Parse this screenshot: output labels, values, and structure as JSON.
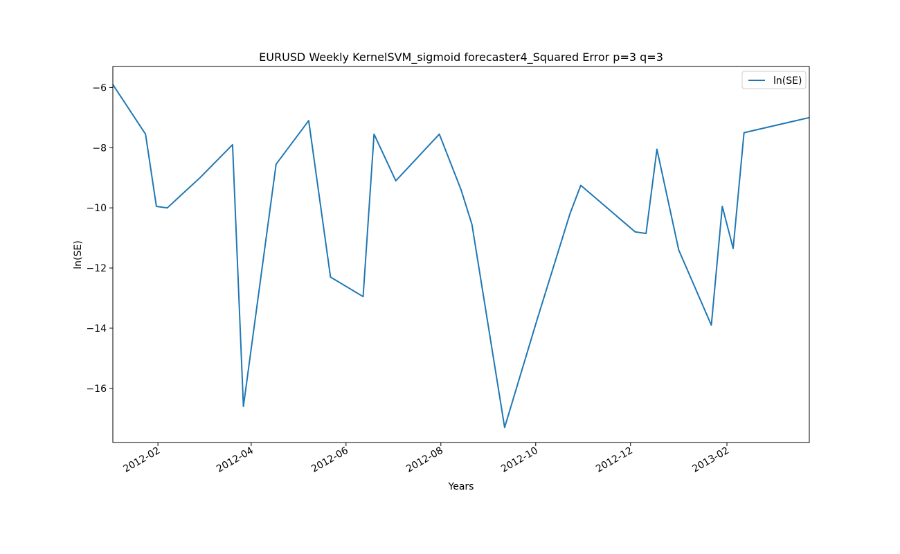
{
  "chart_data": {
    "type": "line",
    "title": "EURUSD Weekly KernelSVM_sigmoid forecaster4_Squared Error p=3 q=3",
    "xlabel": "Years",
    "ylabel": "ln(SE)",
    "x_type": "date",
    "xlim": [
      "2012-01-03",
      "2013-03-26"
    ],
    "ylim": [
      -17.8,
      -5.3
    ],
    "grid": false,
    "legend": "top-right",
    "x_ticks": [
      {
        "label": "2012-02",
        "date": "2012-02-01"
      },
      {
        "label": "2012-04",
        "date": "2012-04-01"
      },
      {
        "label": "2012-06",
        "date": "2012-06-01"
      },
      {
        "label": "2012-08",
        "date": "2012-08-01"
      },
      {
        "label": "2012-10",
        "date": "2012-10-01"
      },
      {
        "label": "2012-12",
        "date": "2012-12-01"
      },
      {
        "label": "2013-02",
        "date": "2013-02-01"
      }
    ],
    "y_ticks": [
      -6,
      -8,
      -10,
      -12,
      -14,
      -16
    ],
    "series": [
      {
        "name": "ln(SE)",
        "color": "#1f77b4",
        "points": [
          {
            "x": "2012-01-03",
            "y": -5.9
          },
          {
            "x": "2012-01-24",
            "y": -7.55
          },
          {
            "x": "2012-01-31",
            "y": -9.95
          },
          {
            "x": "2012-02-07",
            "y": -10.0
          },
          {
            "x": "2012-02-28",
            "y": -9.0
          },
          {
            "x": "2012-03-20",
            "y": -7.9
          },
          {
            "x": "2012-03-27",
            "y": -16.6
          },
          {
            "x": "2012-04-17",
            "y": -8.55
          },
          {
            "x": "2012-05-08",
            "y": -7.1
          },
          {
            "x": "2012-05-22",
            "y": -12.3
          },
          {
            "x": "2012-06-12",
            "y": -12.95
          },
          {
            "x": "2012-06-19",
            "y": -7.55
          },
          {
            "x": "2012-07-03",
            "y": -9.1
          },
          {
            "x": "2012-07-31",
            "y": -7.55
          },
          {
            "x": "2012-08-14",
            "y": -9.4
          },
          {
            "x": "2012-08-21",
            "y": -10.55
          },
          {
            "x": "2012-09-11",
            "y": -17.3
          },
          {
            "x": "2012-10-02",
            "y": -13.7
          },
          {
            "x": "2012-10-23",
            "y": -10.2
          },
          {
            "x": "2012-10-30",
            "y": -9.25
          },
          {
            "x": "2012-12-04",
            "y": -10.8
          },
          {
            "x": "2012-12-11",
            "y": -10.85
          },
          {
            "x": "2012-12-18",
            "y": -8.05
          },
          {
            "x": "2013-01-01",
            "y": -11.4
          },
          {
            "x": "2013-01-22",
            "y": -13.9
          },
          {
            "x": "2013-01-29",
            "y": -9.95
          },
          {
            "x": "2013-02-05",
            "y": -11.35
          },
          {
            "x": "2013-02-12",
            "y": -7.5
          },
          {
            "x": "2013-03-26",
            "y": -7.0
          }
        ]
      }
    ]
  }
}
